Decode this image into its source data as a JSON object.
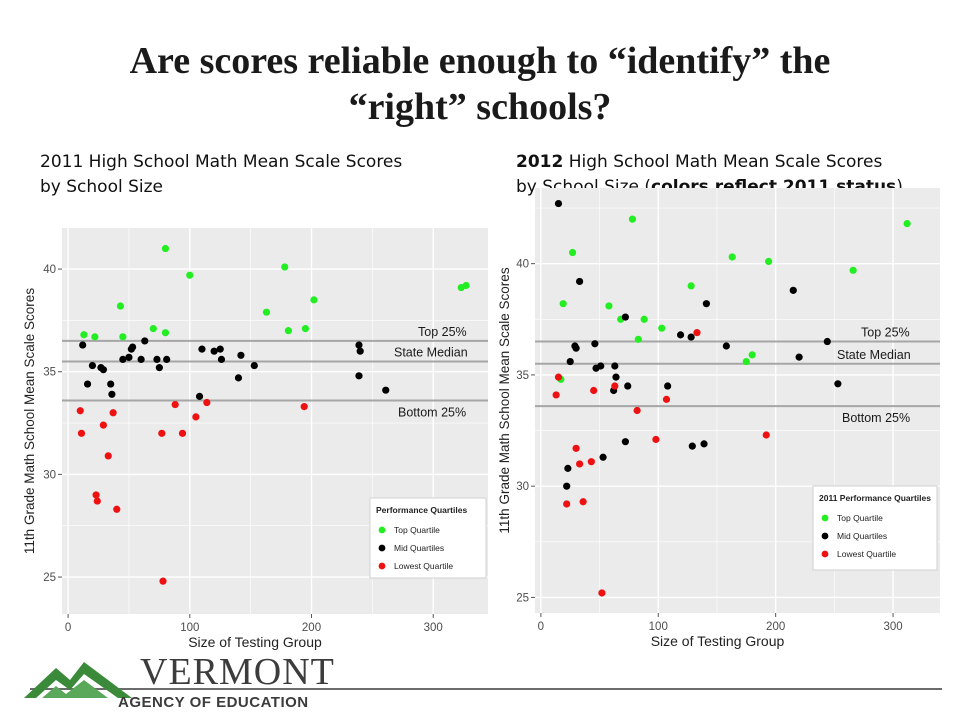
{
  "slide": {
    "title_line1": "Are scores reliable enough to “identify” the",
    "title_line2": "“right” schools?",
    "left_subtitle_line1": "2011 High School Math Mean Scale Scores",
    "left_subtitle_line2": "by School Size",
    "right_subtitle_line1_bold": "2012",
    "right_subtitle_line1_rest": " High School Math Mean Scale Scores",
    "right_subtitle_line2_pre": "by School Size (",
    "right_subtitle_line2_bold": "colors reflect 2011 status",
    "right_subtitle_line2_post": ")"
  },
  "footer": {
    "logo_word": "VERMONT",
    "logo_sub": "AGENCY OF EDUCATION"
  },
  "colors": {
    "top": "#22ee22",
    "mid": "#000000",
    "low": "#ee1111",
    "panel_bg": "#ebebeb",
    "grid": "#ffffff",
    "ref_line": "#a6a6a6",
    "logo_green": "#3a8a3a"
  },
  "chart_data": [
    {
      "type": "scatter",
      "title": "",
      "xlabel": "Size of Testing Group",
      "ylabel": "11th Grade Math School Mean Scale Scores",
      "xlim": [
        -5,
        345
      ],
      "ylim": [
        23.2,
        42.0
      ],
      "x_ticks": [
        0,
        100,
        200,
        300
      ],
      "y_ticks": [
        25,
        30,
        35,
        40
      ],
      "grid": true,
      "reference_lines": [
        {
          "label": "Top 25%",
          "y": 36.5
        },
        {
          "label": "State Median",
          "y": 35.5
        },
        {
          "label": "Bottom 25%",
          "y": 33.6
        }
      ],
      "legend": {
        "placement": "bottom-right",
        "title": "Performance Quartiles",
        "entries": [
          "Top Quartile",
          "Mid Quartiles",
          "Lowest Quartile"
        ]
      },
      "series": [
        {
          "name": "Top Quartile",
          "color_key": "top",
          "points": [
            [
              13,
              36.8
            ],
            [
              22,
              36.7
            ],
            [
              43,
              38.2
            ],
            [
              45,
              36.7
            ],
            [
              70,
              37.1
            ],
            [
              80,
              41.0
            ],
            [
              80,
              36.9
            ],
            [
              100,
              39.7
            ],
            [
              163,
              37.9
            ],
            [
              178,
              40.1
            ],
            [
              181,
              37.0
            ],
            [
              195,
              37.1
            ],
            [
              202,
              38.5
            ],
            [
              323,
              39.1
            ],
            [
              327,
              39.2
            ]
          ]
        },
        {
          "name": "Mid Quartiles",
          "color_key": "mid",
          "points": [
            [
              12,
              36.3
            ],
            [
              16,
              34.4
            ],
            [
              20,
              35.3
            ],
            [
              27,
              35.2
            ],
            [
              29,
              35.1
            ],
            [
              35,
              34.4
            ],
            [
              36,
              33.9
            ],
            [
              45,
              35.6
            ],
            [
              50,
              35.7
            ],
            [
              52,
              36.1
            ],
            [
              53,
              36.2
            ],
            [
              60,
              35.6
            ],
            [
              63,
              36.5
            ],
            [
              73,
              35.6
            ],
            [
              75,
              35.2
            ],
            [
              81,
              35.6
            ],
            [
              108,
              33.8
            ],
            [
              110,
              36.1
            ],
            [
              120,
              36.0
            ],
            [
              125,
              36.1
            ],
            [
              126,
              35.6
            ],
            [
              140,
              34.7
            ],
            [
              142,
              35.8
            ],
            [
              153,
              35.3
            ],
            [
              239,
              36.3
            ],
            [
              240,
              36.0
            ],
            [
              239,
              34.8
            ],
            [
              261,
              34.1
            ]
          ]
        },
        {
          "name": "Lowest Quartile",
          "color_key": "low",
          "points": [
            [
              10,
              33.1
            ],
            [
              11,
              32.0
            ],
            [
              23,
              29.0
            ],
            [
              24,
              28.7
            ],
            [
              29,
              32.4
            ],
            [
              33,
              30.9
            ],
            [
              37,
              33.0
            ],
            [
              40,
              28.3
            ],
            [
              77,
              32.0
            ],
            [
              78,
              24.8
            ],
            [
              88,
              33.4
            ],
            [
              94,
              32.0
            ],
            [
              105,
              32.8
            ],
            [
              114,
              33.5
            ],
            [
              194,
              33.3
            ]
          ]
        }
      ]
    },
    {
      "type": "scatter",
      "title": "",
      "xlabel": "Size of Testing Group",
      "ylabel": "11th Grade Math School Mean Scale Scores",
      "xlim": [
        -5,
        340
      ],
      "ylim": [
        24.3,
        43.4
      ],
      "x_ticks": [
        0,
        100,
        200,
        300
      ],
      "y_ticks": [
        25,
        30,
        35,
        40
      ],
      "grid": true,
      "reference_lines": [
        {
          "label": "Top 25%",
          "y": 36.5
        },
        {
          "label": "State Median",
          "y": 35.5
        },
        {
          "label": "Bottom 25%",
          "y": 33.6
        }
      ],
      "legend": {
        "placement": "bottom-right",
        "title": "2011 Performance Quartiles",
        "entries": [
          "Top Quartile",
          "Mid Quartiles",
          "Lowest Quartile"
        ]
      },
      "series": [
        {
          "name": "Top Quartile",
          "color_key": "top",
          "points": [
            [
              17,
              34.8
            ],
            [
              19,
              38.2
            ],
            [
              27,
              40.5
            ],
            [
              58,
              38.1
            ],
            [
              68,
              37.5
            ],
            [
              78,
              42.0
            ],
            [
              88,
              37.5
            ],
            [
              83,
              36.6
            ],
            [
              103,
              37.1
            ],
            [
              128,
              39.0
            ],
            [
              163,
              40.3
            ],
            [
              175,
              35.6
            ],
            [
              180,
              35.9
            ],
            [
              194,
              40.1
            ],
            [
              266,
              39.7
            ],
            [
              312,
              41.8
            ]
          ]
        },
        {
          "name": "Mid Quartiles",
          "color_key": "mid",
          "points": [
            [
              15,
              42.7
            ],
            [
              22,
              30.0
            ],
            [
              23,
              30.8
            ],
            [
              25,
              35.6
            ],
            [
              29,
              36.3
            ],
            [
              30,
              36.2
            ],
            [
              33,
              39.2
            ],
            [
              46,
              36.4
            ],
            [
              47,
              35.3
            ],
            [
              51,
              35.4
            ],
            [
              53,
              31.3
            ],
            [
              62,
              34.3
            ],
            [
              63,
              35.4
            ],
            [
              64,
              34.9
            ],
            [
              72,
              37.6
            ],
            [
              72,
              32.0
            ],
            [
              74,
              34.5
            ],
            [
              108,
              34.5
            ],
            [
              119,
              36.8
            ],
            [
              128,
              36.7
            ],
            [
              129,
              31.8
            ],
            [
              139,
              31.9
            ],
            [
              141,
              38.2
            ],
            [
              158,
              36.3
            ],
            [
              215,
              38.8
            ],
            [
              220,
              35.8
            ],
            [
              244,
              36.5
            ],
            [
              253,
              34.6
            ]
          ]
        },
        {
          "name": "Lowest Quartile",
          "color_key": "low",
          "points": [
            [
              13,
              34.1
            ],
            [
              15,
              34.9
            ],
            [
              22,
              29.2
            ],
            [
              30,
              31.7
            ],
            [
              33,
              31.0
            ],
            [
              36,
              29.3
            ],
            [
              43,
              31.1
            ],
            [
              45,
              34.3
            ],
            [
              52,
              25.2
            ],
            [
              63,
              34.5
            ],
            [
              82,
              33.4
            ],
            [
              98,
              32.1
            ],
            [
              107,
              33.9
            ],
            [
              133,
              36.9
            ],
            [
              192,
              32.3
            ]
          ]
        }
      ]
    }
  ]
}
